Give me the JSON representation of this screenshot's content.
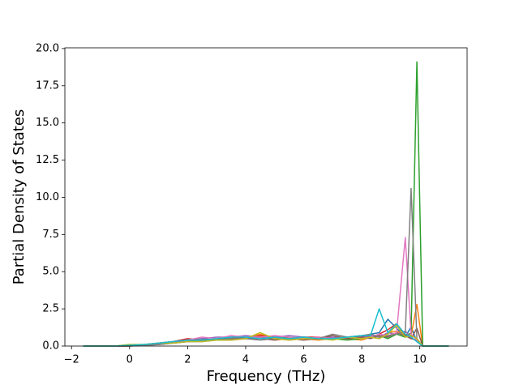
{
  "chart_data": {
    "type": "line",
    "x_label": "Frequency (THz)",
    "y_label": "Partial Density of States",
    "x": [
      -1.6,
      -1,
      -0.5,
      0,
      0.5,
      1,
      1.5,
      2,
      2.5,
      3,
      3.5,
      4,
      4.5,
      5,
      5.5,
      6,
      6.5,
      7,
      7.5,
      8,
      8.3,
      8.6,
      8.9,
      9.2,
      9.5,
      9.7,
      9.9,
      10.1,
      10.5,
      11
    ],
    "xlim": [
      -2.23,
      11.63
    ],
    "ylim": [
      0,
      20.05
    ],
    "xticks": [
      {
        "value": -2,
        "label": "−2"
      },
      0,
      2,
      4,
      6,
      8,
      10
    ],
    "yticks": [
      {
        "value": 0,
        "label": "0.0"
      },
      2.5,
      {
        "value": 5,
        "label": "5.0"
      },
      7.5,
      {
        "value": 10,
        "label": "10.0"
      },
      12.5,
      {
        "value": 15,
        "label": "15.0"
      },
      17.5,
      {
        "value": 20,
        "label": "20.0"
      }
    ],
    "series": [
      {
        "color": "#1f77b4",
        "values": [
          0,
          0,
          0,
          0.05,
          0.1,
          0.2,
          0.3,
          0.4,
          0.4,
          0.5,
          0.5,
          0.6,
          0.6,
          0.5,
          0.5,
          0.6,
          0.5,
          0.5,
          0.6,
          0.6,
          0.8,
          0.9,
          1.8,
          1.2,
          0.6,
          1.3,
          0.3,
          0,
          0,
          0
        ]
      },
      {
        "color": "#ff7f0e",
        "values": [
          0,
          0,
          0,
          0.05,
          0.1,
          0.15,
          0.2,
          0.3,
          0.35,
          0.4,
          0.45,
          0.5,
          0.8,
          0.5,
          0.4,
          0.5,
          0.4,
          0.5,
          0.5,
          0.4,
          0.6,
          0.5,
          0.9,
          1.0,
          0.8,
          0.7,
          2.8,
          0,
          0,
          0
        ]
      },
      {
        "color": "#2ca02c",
        "values": [
          0,
          0,
          0,
          0.1,
          0.1,
          0.2,
          0.3,
          0.4,
          0.5,
          0.4,
          0.5,
          0.5,
          0.6,
          0.5,
          0.6,
          0.5,
          0.5,
          0.5,
          0.4,
          0.5,
          0.6,
          0.7,
          0.5,
          0.8,
          0.6,
          0.9,
          19.1,
          0,
          0,
          0
        ]
      },
      {
        "color": "#d62728",
        "values": [
          0,
          0,
          0,
          0,
          0.1,
          0.2,
          0.3,
          0.5,
          0.4,
          0.5,
          0.6,
          0.5,
          0.7,
          0.6,
          0.5,
          0.6,
          0.6,
          0.5,
          0.6,
          0.7,
          0.6,
          0.8,
          1.1,
          1.5,
          0.7,
          0.5,
          0.4,
          0,
          0,
          0
        ]
      },
      {
        "color": "#9467bd",
        "values": [
          0,
          0,
          0,
          0.05,
          0.1,
          0.15,
          0.3,
          0.3,
          0.5,
          0.6,
          0.6,
          0.7,
          0.6,
          0.6,
          0.7,
          0.6,
          0.5,
          0.6,
          0.5,
          0.6,
          0.7,
          0.6,
          0.9,
          0.8,
          1.0,
          0.6,
          0.3,
          0,
          0,
          0
        ]
      },
      {
        "color": "#8c564b",
        "values": [
          0,
          0,
          0,
          0,
          0.05,
          0.1,
          0.2,
          0.3,
          0.3,
          0.4,
          0.4,
          0.5,
          0.5,
          0.4,
          0.5,
          0.4,
          0.5,
          0.7,
          0.5,
          0.6,
          0.5,
          0.7,
          0.6,
          0.9,
          0.7,
          0.5,
          1.2,
          0,
          0,
          0
        ]
      },
      {
        "color": "#e377c2",
        "values": [
          0,
          0,
          0,
          0.05,
          0.1,
          0.2,
          0.3,
          0.4,
          0.6,
          0.5,
          0.7,
          0.6,
          0.6,
          0.7,
          0.6,
          0.5,
          0.6,
          0.5,
          0.6,
          0.5,
          0.6,
          0.8,
          0.7,
          0.9,
          7.3,
          0.8,
          0.4,
          0,
          0,
          0
        ]
      },
      {
        "color": "#7f7f7f",
        "values": [
          0,
          0,
          0,
          0,
          0.05,
          0.1,
          0.2,
          0.3,
          0.4,
          0.4,
          0.5,
          0.5,
          0.4,
          0.5,
          0.5,
          0.6,
          0.5,
          0.8,
          0.6,
          0.7,
          0.8,
          0.6,
          0.7,
          0.8,
          0.9,
          10.6,
          0.5,
          0,
          0,
          0
        ]
      },
      {
        "color": "#bcbd22",
        "values": [
          0,
          0,
          0,
          0.1,
          0.1,
          0.2,
          0.2,
          0.3,
          0.3,
          0.4,
          0.4,
          0.5,
          0.9,
          0.5,
          0.4,
          0.5,
          0.5,
          0.4,
          0.6,
          0.5,
          0.6,
          0.5,
          0.8,
          1.4,
          0.6,
          0.7,
          0.5,
          0,
          0,
          0
        ]
      },
      {
        "color": "#17becf",
        "values": [
          0,
          0,
          0,
          0.05,
          0.1,
          0.2,
          0.3,
          0.4,
          0.4,
          0.5,
          0.6,
          0.6,
          0.5,
          0.6,
          0.5,
          0.6,
          0.5,
          0.5,
          0.6,
          0.7,
          0.7,
          2.5,
          0.9,
          1.5,
          0.8,
          0.6,
          0.3,
          0,
          0,
          0
        ]
      }
    ]
  }
}
